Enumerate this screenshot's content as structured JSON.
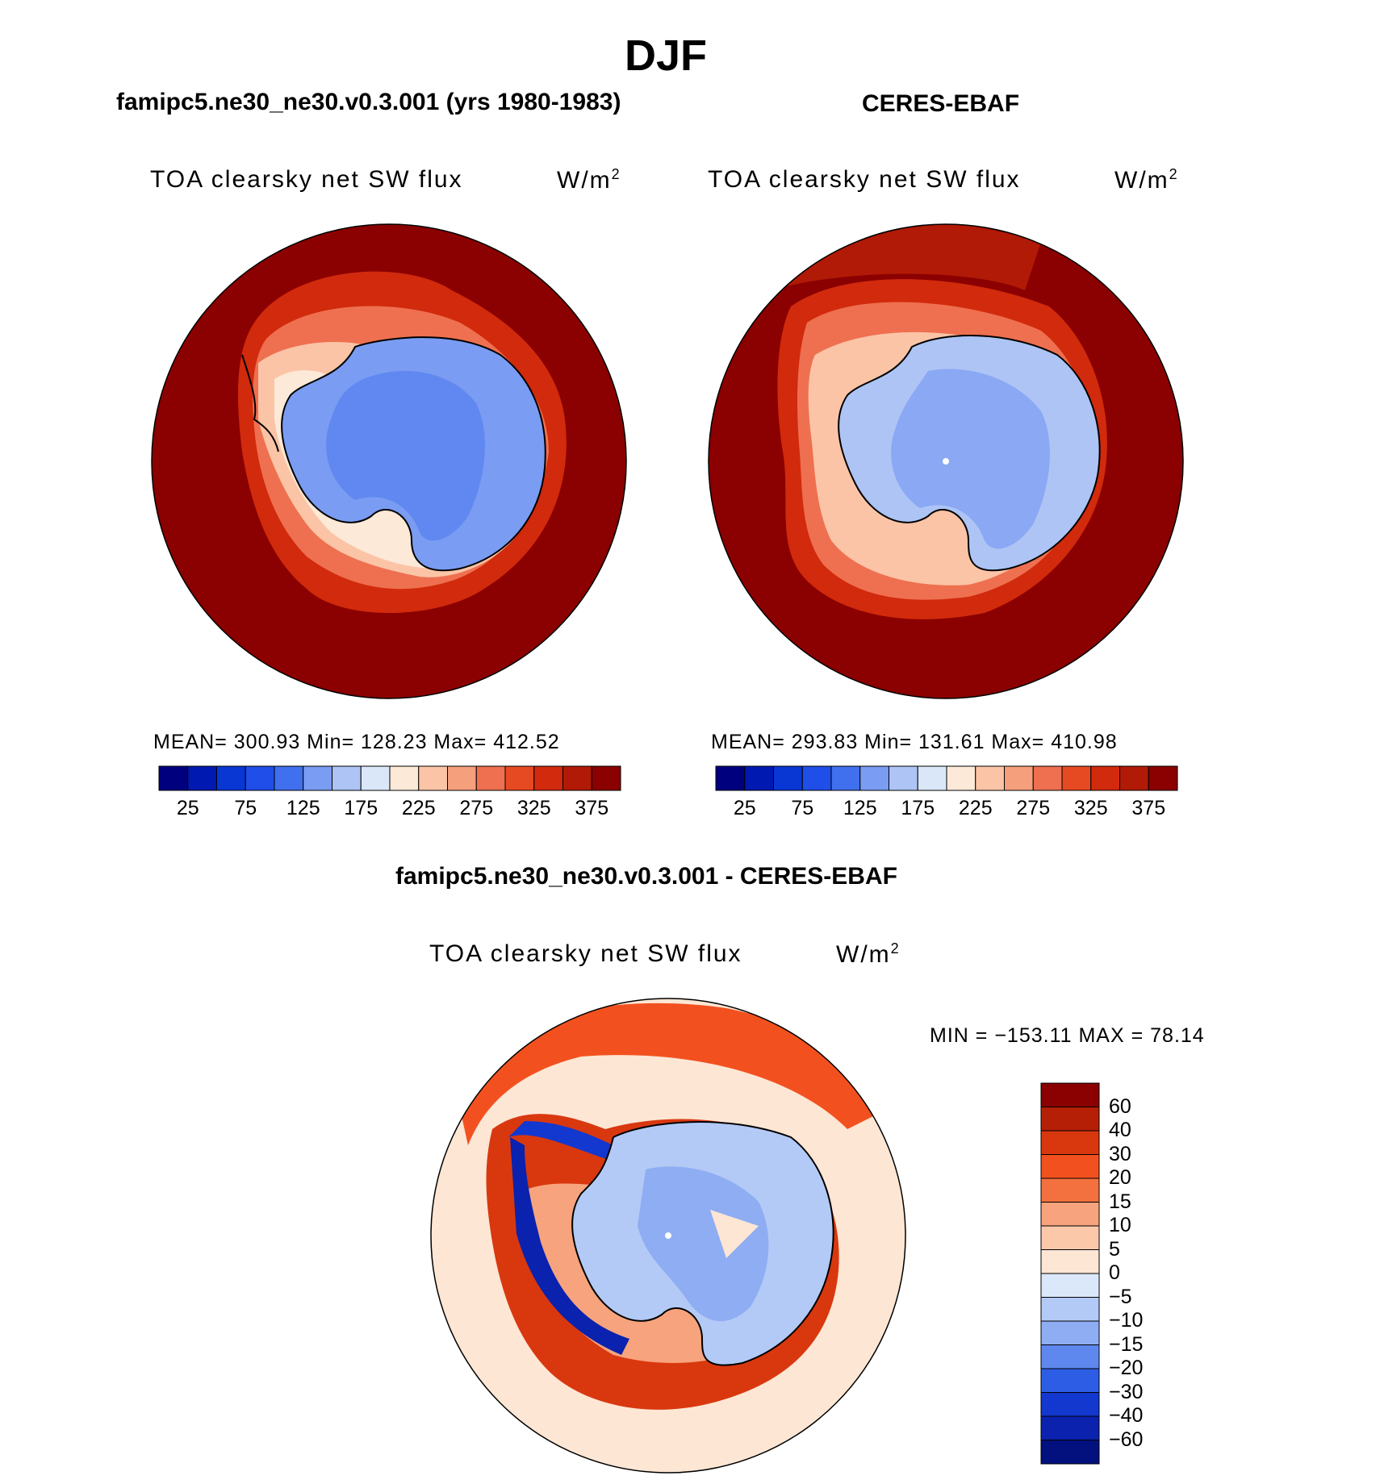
{
  "title": "DJF",
  "panels": [
    {
      "subtitle": "famipc5.ne30_ne30.v0.3.001 (yrs 1980-1983)",
      "variable": "TOA clearsky net SW flux",
      "units": "W/m",
      "units_sup": "2",
      "stats": "MEAN= 300.93   Min= 128.23   Max= 412.52"
    },
    {
      "subtitle": "CERES-EBAF",
      "variable": "TOA clearsky net SW flux",
      "units": "W/m",
      "units_sup": "2",
      "stats": "MEAN= 293.83   Min= 131.61   Max= 410.98"
    },
    {
      "subtitle": "famipc5.ne30_ne30.v0.3.001 - CERES-EBAF",
      "variable": "TOA clearsky net SW flux",
      "units": "W/m",
      "units_sup": "2",
      "stats": "MIN = −153.11 MAX =   78.14"
    }
  ],
  "colorbar_abs": {
    "colors": [
      "#00007f",
      "#0019b0",
      "#0837d4",
      "#1f4fe8",
      "#4170ee",
      "#7a9cf2",
      "#adc4f5",
      "#dae7f8",
      "#fde9d8",
      "#fbc4a6",
      "#f59f7c",
      "#ee7050",
      "#e64a22",
      "#d12a0c",
      "#b11a06",
      "#8b0000"
    ],
    "ticks": [
      "25",
      "75",
      "125",
      "175",
      "225",
      "275",
      "325",
      "375"
    ]
  },
  "colorbar_diff": {
    "colors": [
      "#8b0000",
      "#b51f05",
      "#d9380f",
      "#f2511f",
      "#f3713f",
      "#f7a37d",
      "#fbc9aa",
      "#fde6d4",
      "#dbe8f9",
      "#b3caf6",
      "#8eadf3",
      "#5f88ee",
      "#2e5de5",
      "#1338cf",
      "#0a22ad",
      "#02117e"
    ],
    "ticks": [
      "60",
      "40",
      "30",
      "20",
      "15",
      "10",
      "5",
      "0",
      "−5",
      "−10",
      "−15",
      "−20",
      "−30",
      "−40",
      "−60"
    ]
  }
}
